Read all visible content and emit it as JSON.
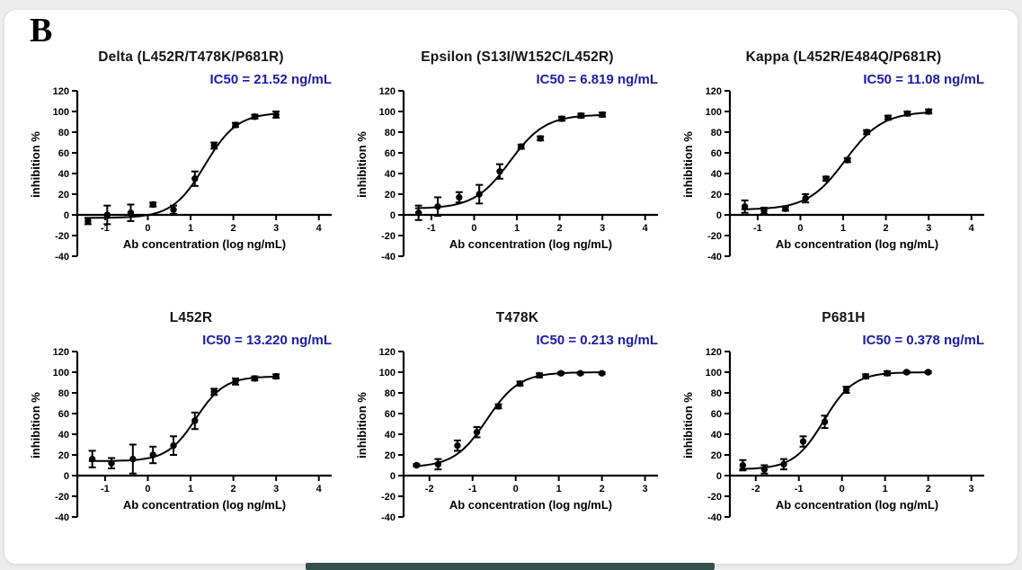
{
  "figure_label": "B",
  "colors": {
    "annotation_blue": "#1c1ca8",
    "curve_black": "#000000",
    "card_background": "#ffffff",
    "page_background": "#ececec",
    "bottom_bar": "#35514d"
  },
  "chart_data": [
    {
      "type": "scatter",
      "title": "Delta (L452R/T478K/P681R)",
      "annotation": "IC50 = 21.52 ng/mL",
      "ic50_ng_ml": 21.52,
      "xlabel": "Ab concentration (log ng/mL)",
      "ylabel": "inhibition %",
      "xlim": [
        -1.65,
        4.3
      ],
      "ylim": [
        -40,
        120
      ],
      "xticks": [
        -1,
        0,
        1,
        2,
        3,
        4
      ],
      "yticks": [
        120,
        100,
        80,
        60,
        40,
        20,
        0,
        -20,
        -40
      ],
      "x": [
        -1.4,
        -0.95,
        -0.4,
        0.12,
        0.6,
        1.1,
        1.55,
        2.05,
        2.5,
        3.0
      ],
      "y": [
        -6,
        0,
        2,
        10,
        5,
        35,
        67,
        87,
        95,
        97
      ],
      "yerr": [
        3,
        9,
        8,
        2,
        4,
        7,
        3,
        2,
        2,
        3
      ],
      "fit": {
        "bottom": -3,
        "top": 99,
        "logIC50": 1.333,
        "hill": 1.15
      }
    },
    {
      "type": "scatter",
      "title": "Epsilon (S13I/W152C/L452R)",
      "annotation": "IC50 = 6.819 ng/mL",
      "ic50_ng_ml": 6.819,
      "xlabel": "Ab concentration (log ng/mL)",
      "ylabel": "inhibition %",
      "xlim": [
        -1.65,
        4.3
      ],
      "ylim": [
        -40,
        120
      ],
      "xticks": [
        -1,
        0,
        1,
        2,
        3,
        4
      ],
      "yticks": [
        120,
        100,
        80,
        60,
        40,
        20,
        0,
        -20,
        -40
      ],
      "x": [
        -1.3,
        -0.85,
        -0.35,
        0.12,
        0.6,
        1.1,
        1.55,
        2.05,
        2.5,
        3.0
      ],
      "y": [
        2,
        8,
        17,
        20,
        42,
        66,
        74,
        93,
        96,
        97
      ],
      "yerr": [
        7,
        9,
        5,
        9,
        7,
        2,
        2,
        2,
        2,
        2
      ],
      "fit": {
        "bottom": 6,
        "top": 97,
        "logIC50": 0.834,
        "hill": 1.05
      }
    },
    {
      "type": "scatter",
      "title": "Kappa (L452R/E484Q/P681R)",
      "annotation": "IC50 = 11.08 ng/mL",
      "ic50_ng_ml": 11.08,
      "xlabel": "Ab concentration (log ng/mL)",
      "ylabel": "inhibition %",
      "xlim": [
        -1.65,
        4.3
      ],
      "ylim": [
        -40,
        120
      ],
      "xticks": [
        -1,
        0,
        1,
        2,
        3,
        4
      ],
      "yticks": [
        120,
        100,
        80,
        60,
        40,
        20,
        0,
        -20,
        -40
      ],
      "x": [
        -1.3,
        -0.85,
        -0.35,
        0.12,
        0.6,
        1.1,
        1.55,
        2.05,
        2.5,
        3.0
      ],
      "y": [
        8,
        4,
        6,
        16,
        35,
        53,
        80,
        94,
        98,
        100
      ],
      "yerr": [
        6,
        3,
        2,
        4,
        2,
        2,
        2,
        2,
        2,
        2
      ],
      "fit": {
        "bottom": 5,
        "top": 100,
        "logIC50": 1.044,
        "hill": 1.0
      }
    },
    {
      "type": "scatter",
      "title": "L452R",
      "annotation": "IC50 = 13.220 ng/mL",
      "ic50_ng_ml": 13.22,
      "xlabel": "Ab concentration (log ng/mL)",
      "ylabel": "inhibition %",
      "xlim": [
        -1.65,
        4.3
      ],
      "ylim": [
        -40,
        120
      ],
      "xticks": [
        -1,
        0,
        1,
        2,
        3,
        4
      ],
      "yticks": [
        120,
        100,
        80,
        60,
        40,
        20,
        0,
        -20,
        -40
      ],
      "x": [
        -1.3,
        -0.85,
        -0.35,
        0.12,
        0.6,
        1.1,
        1.55,
        2.05,
        2.5,
        3.0
      ],
      "y": [
        16,
        12,
        16,
        20,
        29,
        53,
        81,
        91,
        94,
        96
      ],
      "yerr": [
        8,
        5,
        14,
        8,
        9,
        8,
        3,
        3,
        2,
        2
      ],
      "fit": {
        "bottom": 14,
        "top": 96,
        "logIC50": 1.121,
        "hill": 1.3
      }
    },
    {
      "type": "scatter",
      "title": "T478K",
      "annotation": "IC50 = 0.213 ng/mL",
      "ic50_ng_ml": 0.213,
      "xlabel": "Ab concentration (log ng/mL)",
      "ylabel": "inhibition %",
      "xlim": [
        -2.6,
        3.3
      ],
      "ylim": [
        -40,
        120
      ],
      "xticks": [
        -2,
        -1,
        0,
        1,
        2,
        3
      ],
      "yticks": [
        120,
        100,
        80,
        60,
        40,
        20,
        0,
        -20,
        -40
      ],
      "x": [
        -2.3,
        -1.8,
        -1.35,
        -0.9,
        -0.4,
        0.1,
        0.55,
        1.05,
        1.5,
        2.0
      ],
      "y": [
        10,
        11,
        29,
        42,
        67,
        89,
        97,
        99,
        99,
        99
      ],
      "yerr": [
        1,
        5,
        5,
        5,
        2,
        2,
        2,
        1,
        1,
        1
      ],
      "fit": {
        "bottom": 8,
        "top": 100,
        "logIC50": -0.672,
        "hill": 1.15
      }
    },
    {
      "type": "scatter",
      "title": "P681H",
      "annotation": "IC50 = 0.378 ng/mL",
      "ic50_ng_ml": 0.378,
      "xlabel": "Ab concentration (log ng/mL)",
      "ylabel": "inhibition %",
      "xlim": [
        -2.6,
        3.3
      ],
      "ylim": [
        -40,
        120
      ],
      "xticks": [
        -2,
        -1,
        0,
        1,
        2,
        3
      ],
      "yticks": [
        120,
        100,
        80,
        60,
        40,
        20,
        0,
        -20,
        -40
      ],
      "x": [
        -2.3,
        -1.8,
        -1.35,
        -0.9,
        -0.4,
        0.1,
        0.55,
        1.05,
        1.5,
        2.0
      ],
      "y": [
        10,
        6,
        11,
        33,
        52,
        83,
        96,
        99,
        100,
        100
      ],
      "yerr": [
        5,
        4,
        5,
        5,
        6,
        3,
        2,
        2,
        1,
        1
      ],
      "fit": {
        "bottom": 6,
        "top": 100,
        "logIC50": -0.423,
        "hill": 1.25
      }
    }
  ]
}
